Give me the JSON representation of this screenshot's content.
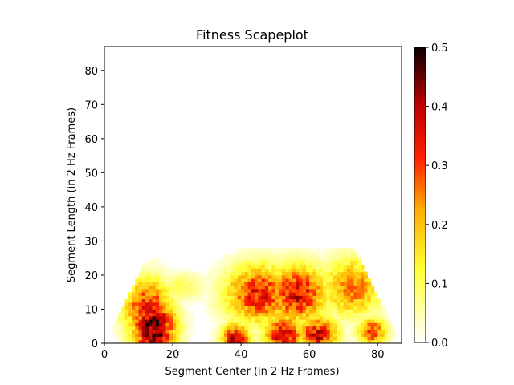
{
  "chart_data": {
    "type": "heatmap",
    "title": "Fitness Scapeplot",
    "xlabel": "Segment Center (in 2 Hz Frames)",
    "ylabel": "Segment Length (in 2 Hz Frames)",
    "xlim": [
      0,
      87
    ],
    "ylim": [
      0,
      87
    ],
    "xticks": [
      0,
      20,
      40,
      60,
      80
    ],
    "yticks": [
      0,
      10,
      20,
      30,
      40,
      50,
      60,
      70,
      80
    ],
    "colorbar": {
      "colormap": "hot_r",
      "vmin": 0.0,
      "vmax": 0.5,
      "ticks": [
        "0.0",
        "0.1",
        "0.2",
        "0.3",
        "0.4",
        "0.5"
      ]
    },
    "features": [
      {
        "center": 14,
        "length": 4,
        "peak": 0.46,
        "sx": 4.5,
        "sy": 6,
        "note": "dense low-length region near center 14"
      },
      {
        "center": 12,
        "length": 10,
        "peak": 0.33,
        "sx": 5,
        "sy": 6
      },
      {
        "center": 22,
        "length": 16,
        "peak": 0.1,
        "sx": 5,
        "sy": 3
      },
      {
        "center": 45,
        "length": 14,
        "peak": 0.34,
        "sx": 7,
        "sy": 6
      },
      {
        "center": 56,
        "length": 14,
        "peak": 0.36,
        "sx": 6,
        "sy": 6
      },
      {
        "center": 38,
        "length": 1,
        "peak": 0.38,
        "sx": 3,
        "sy": 3
      },
      {
        "center": 52,
        "length": 2,
        "peak": 0.38,
        "sx": 4,
        "sy": 4
      },
      {
        "center": 62,
        "length": 2,
        "peak": 0.36,
        "sx": 4,
        "sy": 4
      },
      {
        "center": 72,
        "length": 16,
        "peak": 0.26,
        "sx": 6,
        "sy": 6
      },
      {
        "center": 78,
        "length": 3,
        "peak": 0.3,
        "sx": 3,
        "sy": 3
      }
    ]
  }
}
